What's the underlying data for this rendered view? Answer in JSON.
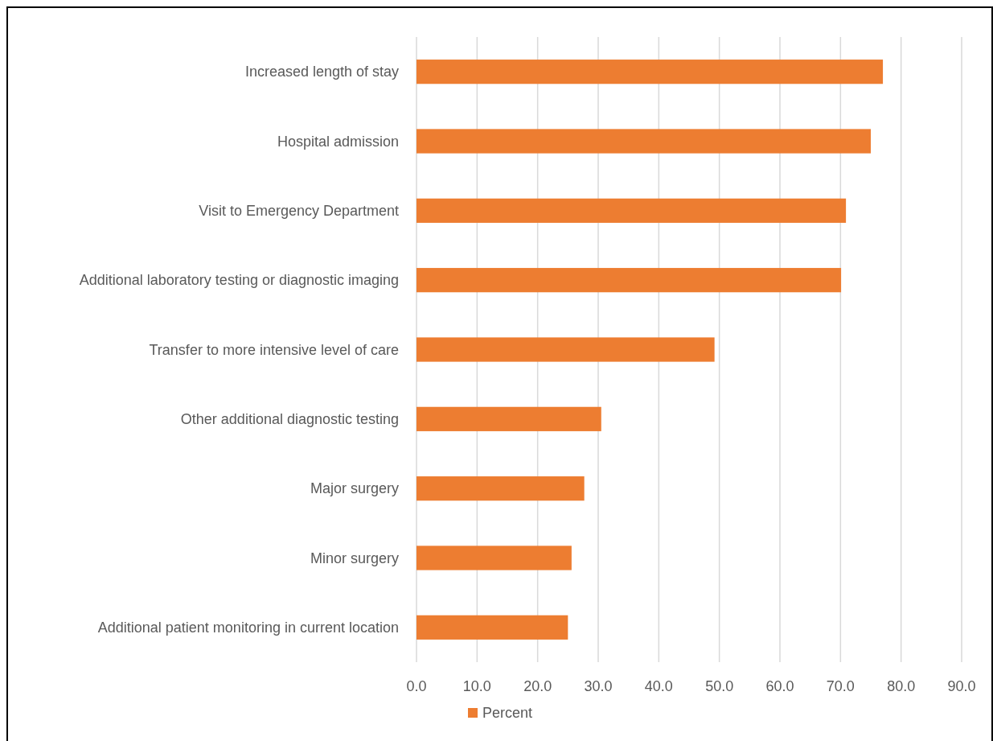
{
  "chart_data": {
    "type": "bar",
    "orientation": "horizontal",
    "categories": [
      "Increased length of stay",
      "Hospital admission",
      "Visit to Emergency Department",
      "Additional laboratory testing or diagnostic imaging",
      "Transfer to more intensive level of care",
      "Other additional diagnostic testing",
      "Major surgery",
      "Minor surgery",
      "Additional patient monitoring in current location"
    ],
    "series": [
      {
        "name": "Percent",
        "color": "#ed7d31",
        "values": [
          77.0,
          75.0,
          70.9,
          70.1,
          49.2,
          30.5,
          27.7,
          25.6,
          25.0
        ]
      }
    ],
    "xlim": [
      0,
      90
    ],
    "xticks": [
      {
        "value": 0,
        "label": "0.0"
      },
      {
        "value": 10,
        "label": "10.0"
      },
      {
        "value": 20,
        "label": "20.0"
      },
      {
        "value": 30,
        "label": "30.0"
      },
      {
        "value": 40,
        "label": "40.0"
      },
      {
        "value": 50,
        "label": "50.0"
      },
      {
        "value": 60,
        "label": "60.0"
      },
      {
        "value": 70,
        "label": "70.0"
      },
      {
        "value": 80,
        "label": "80.0"
      },
      {
        "value": 90,
        "label": "90.0"
      }
    ],
    "grid": "x",
    "legend": "bottom"
  }
}
